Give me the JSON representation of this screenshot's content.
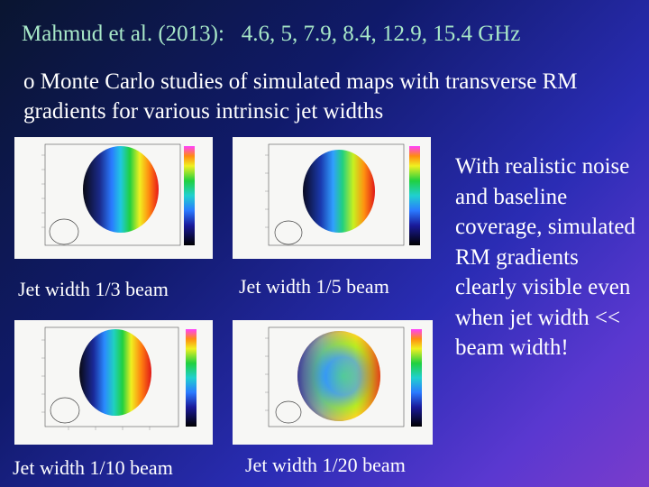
{
  "slide": {
    "title": "Mahmud et al. (2013):   4.6, 5, 7.9, 8.4, 12.9, 15.4 GHz",
    "bullet": "o Monte Carlo studies of simulated maps with transverse RM gradients for various intrinsic jet widths",
    "side_note": "With realistic noise and baseline coverage, simulated RM gradients clearly visible even when jet width << beam width!"
  },
  "panels": [
    {
      "caption": "Jet width 1/3 beam"
    },
    {
      "caption": "Jet width 1/5 beam"
    },
    {
      "caption": "Jet width 1/10 beam"
    },
    {
      "caption": "Jet width 1/20 beam"
    }
  ],
  "colors": {
    "background_start": "#0a1530",
    "background_end": "#7a3ccc",
    "title_text": "#a8e8c8",
    "body_text": "#ffffff"
  }
}
